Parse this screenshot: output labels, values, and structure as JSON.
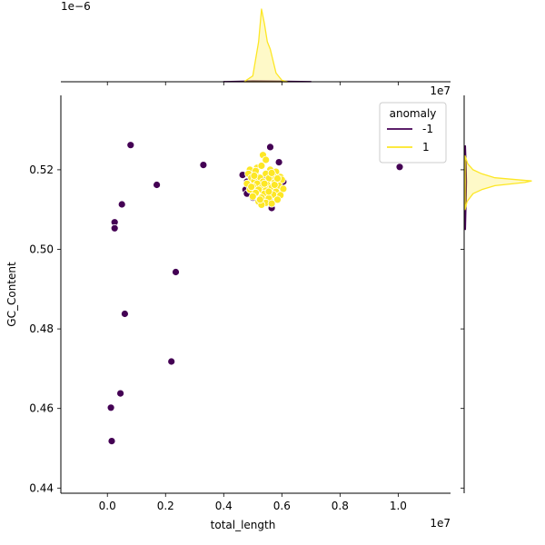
{
  "chart_data": {
    "type": "scatter",
    "xlabel": "total_length",
    "ylabel": "GC_Content",
    "x_offset_label": "1e7",
    "y_offset_label": "1e7",
    "top_marginal_offset_label": "1e−6",
    "xlim": [
      -1600000,
      11800000
    ],
    "ylim": [
      0.4387,
      0.5387
    ],
    "x_ticks": [
      0.0,
      0.2,
      0.4,
      0.6,
      0.8,
      1.0
    ],
    "x_tick_labels": [
      "0.0",
      "0.2",
      "0.4",
      "0.6",
      "0.8",
      "1.0"
    ],
    "y_ticks": [
      0.44,
      0.46,
      0.48,
      0.5,
      0.52
    ],
    "y_tick_labels": [
      "0.44",
      "0.46",
      "0.48",
      "0.50",
      "0.52"
    ],
    "grid": false,
    "legend": {
      "title": "anomaly",
      "placement": "top-right",
      "entries": [
        {
          "label": "-1",
          "color": "#440154"
        },
        {
          "label": "1",
          "color": "#fde725"
        }
      ]
    },
    "series": [
      {
        "name": "-1",
        "color": "#440154",
        "points": [
          [
            800000,
            0.5262
          ],
          [
            3300000,
            0.5212
          ],
          [
            1700000,
            0.5162
          ],
          [
            500000,
            0.5113
          ],
          [
            250000,
            0.5068
          ],
          [
            250000,
            0.5053
          ],
          [
            2350000,
            0.4943
          ],
          [
            600000,
            0.4838
          ],
          [
            2200000,
            0.4718
          ],
          [
            450000,
            0.4638
          ],
          [
            120000,
            0.4602
          ],
          [
            150000,
            0.4518
          ],
          [
            10050000,
            0.5207
          ],
          [
            5600000,
            0.5257
          ],
          [
            5900000,
            0.5219
          ],
          [
            5100000,
            0.52
          ],
          [
            4650000,
            0.5187
          ],
          [
            5000000,
            0.518
          ],
          [
            5500000,
            0.518
          ],
          [
            4800000,
            0.517
          ],
          [
            6050000,
            0.517
          ],
          [
            4750000,
            0.515
          ],
          [
            5200000,
            0.515
          ],
          [
            5700000,
            0.515
          ],
          [
            4800000,
            0.514
          ],
          [
            5350000,
            0.513
          ],
          [
            5000000,
            0.513
          ],
          [
            5600000,
            0.512
          ],
          [
            5950000,
            0.5135
          ],
          [
            5650000,
            0.5104
          ],
          [
            5800000,
            0.516
          ]
        ]
      },
      {
        "name": "1",
        "color": "#fde725",
        "points": [
          [
            5350000,
            0.5237
          ],
          [
            5450000,
            0.5225
          ],
          [
            4900000,
            0.52
          ],
          [
            5150000,
            0.5205
          ],
          [
            5300000,
            0.521
          ],
          [
            5600000,
            0.52
          ],
          [
            5800000,
            0.5195
          ],
          [
            4850000,
            0.519
          ],
          [
            5100000,
            0.519
          ],
          [
            5450000,
            0.519
          ],
          [
            5700000,
            0.5185
          ],
          [
            5950000,
            0.5182
          ],
          [
            4950000,
            0.518
          ],
          [
            5250000,
            0.518
          ],
          [
            5550000,
            0.5178
          ],
          [
            6000000,
            0.5175
          ],
          [
            5050000,
            0.5172
          ],
          [
            5350000,
            0.517
          ],
          [
            5750000,
            0.5168
          ],
          [
            4800000,
            0.5165
          ],
          [
            5150000,
            0.5165
          ],
          [
            5500000,
            0.5162
          ],
          [
            5900000,
            0.516
          ],
          [
            5000000,
            0.5158
          ],
          [
            5300000,
            0.5155
          ],
          [
            5650000,
            0.5155
          ],
          [
            6050000,
            0.5152
          ],
          [
            4900000,
            0.515
          ],
          [
            5200000,
            0.515
          ],
          [
            5450000,
            0.5148
          ],
          [
            5800000,
            0.5145
          ],
          [
            5100000,
            0.5142
          ],
          [
            5400000,
            0.514
          ],
          [
            5700000,
            0.5138
          ],
          [
            5950000,
            0.5136
          ],
          [
            5000000,
            0.5133
          ],
          [
            5300000,
            0.513
          ],
          [
            5550000,
            0.5128
          ],
          [
            5850000,
            0.5125
          ],
          [
            5200000,
            0.512
          ],
          [
            5450000,
            0.5117
          ],
          [
            5650000,
            0.5115
          ],
          [
            5300000,
            0.5112
          ],
          [
            5750000,
            0.5162
          ],
          [
            5100000,
            0.5197
          ],
          [
            5650000,
            0.5192
          ],
          [
            4950000,
            0.5157
          ],
          [
            5550000,
            0.5145
          ],
          [
            5250000,
            0.5125
          ],
          [
            5850000,
            0.5178
          ],
          [
            5400000,
            0.5165
          ],
          [
            5050000,
            0.5185
          ]
        ]
      }
    ],
    "marginal_x": {
      "series": [
        {
          "name": "-1",
          "color": "#440154",
          "x": [
            4000000,
            5000000,
            6000000,
            7000000
          ],
          "density": [
            0.002,
            0.01,
            0.008,
            0.002
          ]
        },
        {
          "name": "1",
          "color": "#fde725",
          "x": [
            4700000,
            5000000,
            5200000,
            5300000,
            5400000,
            5500000,
            5600000,
            5800000,
            6000000,
            6200000
          ],
          "density": [
            0.0,
            0.08,
            0.55,
            1.0,
            0.8,
            0.55,
            0.45,
            0.12,
            0.02,
            0.0
          ]
        }
      ]
    },
    "marginal_y": {
      "series": [
        {
          "name": "-1",
          "color": "#440154",
          "y": [
            0.505,
            0.512,
            0.517,
            0.521,
            0.526
          ],
          "density": [
            0.005,
            0.015,
            0.02,
            0.015,
            0.005
          ]
        },
        {
          "name": "1",
          "color": "#fde725",
          "y": [
            0.51,
            0.512,
            0.514,
            0.515,
            0.516,
            0.5168,
            0.5172,
            0.518,
            0.519,
            0.52,
            0.5215,
            0.5235
          ],
          "density": [
            0.0,
            0.03,
            0.12,
            0.25,
            0.45,
            0.9,
            1.0,
            0.45,
            0.25,
            0.12,
            0.04,
            0.0
          ]
        }
      ]
    }
  }
}
